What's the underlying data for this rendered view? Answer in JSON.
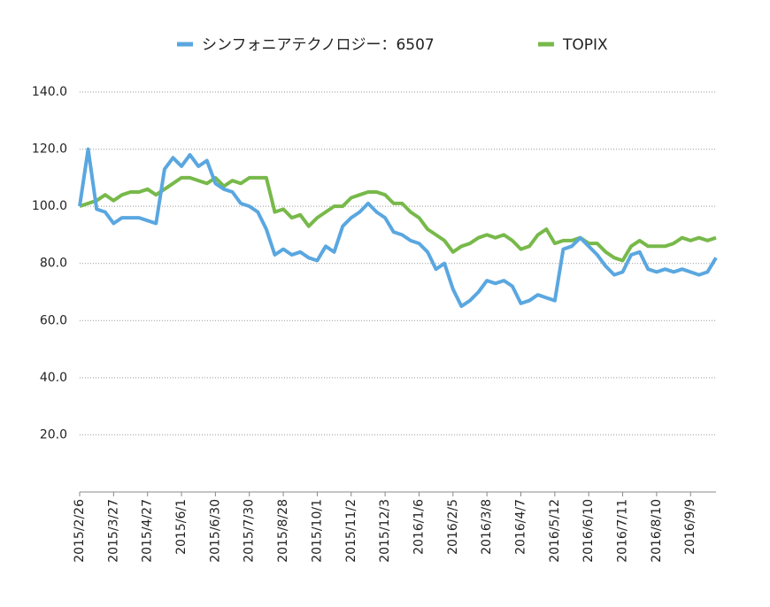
{
  "chart_data": {
    "type": "line",
    "categories": [
      "2015/2/26",
      null,
      null,
      null,
      "2015/3/27",
      null,
      null,
      null,
      "2015/4/27",
      null,
      null,
      null,
      "2015/6/1",
      null,
      null,
      null,
      "2015/6/30",
      null,
      null,
      null,
      "2015/7/30",
      null,
      null,
      null,
      "2015/8/28",
      null,
      null,
      null,
      "2015/10/1",
      null,
      null,
      null,
      "2015/11/2",
      null,
      null,
      null,
      "2015/12/3",
      null,
      null,
      null,
      "2016/1/6",
      null,
      null,
      null,
      "2016/2/5",
      null,
      null,
      null,
      "2016/3/8",
      null,
      null,
      null,
      "2016/4/7",
      null,
      null,
      null,
      "2016/5/12",
      null,
      null,
      null,
      "2016/6/10",
      null,
      null,
      null,
      "2016/7/11",
      null,
      null,
      null,
      "2016/8/10",
      null,
      null,
      null,
      "2016/9/9",
      null,
      null,
      null
    ],
    "series": [
      {
        "name": "シンフォニアテクノロジー：6507",
        "color": "#5aa7e0",
        "values": [
          100,
          120,
          99,
          98,
          94,
          96,
          96,
          96,
          95,
          94,
          113,
          117,
          114,
          118,
          114,
          116,
          108,
          106,
          105,
          101,
          100,
          98,
          92,
          83,
          85,
          83,
          84,
          82,
          81,
          86,
          84,
          93,
          96,
          98,
          101,
          98,
          96,
          91,
          90,
          88,
          87,
          84,
          78,
          80,
          71,
          65,
          67,
          70,
          74,
          73,
          74,
          72,
          66,
          67,
          69,
          68,
          67,
          85,
          86,
          89,
          86,
          83,
          79,
          76,
          77,
          83,
          84,
          78,
          77,
          78,
          77,
          78,
          77,
          76,
          77,
          82
        ]
      },
      {
        "name": "TOPIX",
        "color": "#77b94a",
        "values": [
          100,
          101,
          102,
          104,
          102,
          104,
          105,
          105,
          106,
          104,
          106,
          108,
          110,
          110,
          109,
          108,
          110,
          107,
          109,
          108,
          110,
          110,
          110,
          98,
          99,
          96,
          97,
          93,
          96,
          98,
          100,
          100,
          103,
          104,
          105,
          105,
          104,
          101,
          101,
          98,
          96,
          92,
          90,
          88,
          84,
          86,
          87,
          89,
          90,
          89,
          90,
          88,
          85,
          86,
          90,
          92,
          87,
          88,
          88,
          89,
          87,
          87,
          84,
          82,
          81,
          86,
          88,
          86,
          86,
          86,
          87,
          89,
          88,
          89,
          88,
          89
        ]
      }
    ],
    "ylim": [
      0,
      140
    ],
    "yticks": [
      {
        "value": 20,
        "label": "20.0"
      },
      {
        "value": 40,
        "label": "40.0"
      },
      {
        "value": 60,
        "label": "60.0"
      },
      {
        "value": 80,
        "label": "80.0"
      },
      {
        "value": 100,
        "label": "100.0"
      },
      {
        "value": 120,
        "label": "120.0"
      },
      {
        "value": 140,
        "label": "140.0"
      }
    ],
    "grid": true
  }
}
